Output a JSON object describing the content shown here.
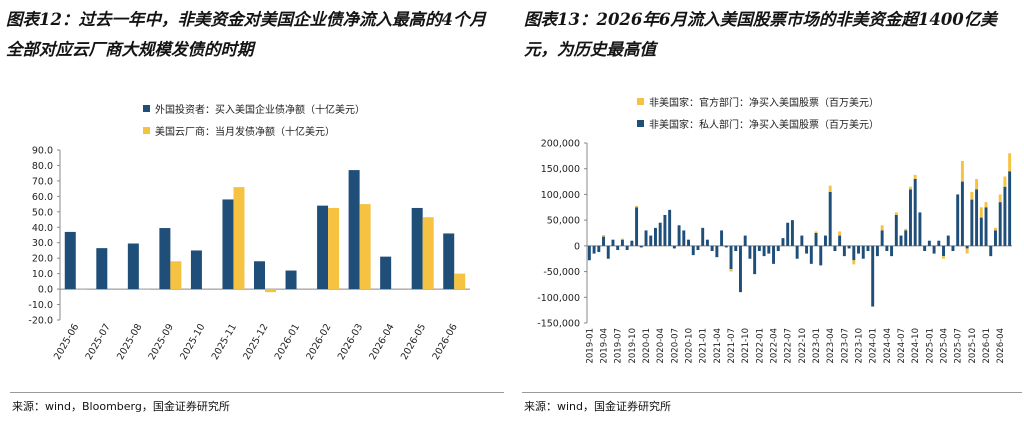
{
  "left": {
    "title": "图表12：过去一年中，非美资金对美国企业债净流入最高的4个月全部对应云厂商大规模发债的时期",
    "source": "来源：wind，Bloomberg，国金证券研究所",
    "colors": {
      "primary": "#1f4e79",
      "secondary": "#f5c242"
    },
    "chart_data": {
      "type": "bar",
      "categories": [
        "2025-06",
        "2025-07",
        "2025-08",
        "2025-09",
        "2025-10",
        "2025-11",
        "2025-12",
        "2026-01",
        "2026-02",
        "2026-03",
        "2026-04",
        "2026-05",
        "2026-06"
      ],
      "series": [
        {
          "name": "外国投资者：买入美国企业债净额（十亿美元）",
          "values": [
            37,
            26.5,
            29.5,
            39.5,
            25,
            58,
            18,
            12,
            54,
            77,
            21,
            52.5,
            36
          ]
        },
        {
          "name": "美国云厂商：当月发债净额（十亿美元）",
          "values": [
            -0.5,
            null,
            -0.5,
            18,
            null,
            66,
            -2,
            null,
            52.5,
            55,
            null,
            46.5,
            10
          ]
        }
      ],
      "ylim": [
        -20,
        90
      ],
      "yticks": [
        "90.0",
        "80.0",
        "70.0",
        "60.0",
        "50.0",
        "40.0",
        "30.0",
        "20.0",
        "10.0",
        "0.0",
        "-10.0",
        "-20.0"
      ],
      "grid": false,
      "legend": "top-left"
    }
  },
  "right": {
    "title": "图表13：2026年6月流入美国股票市场的非美资金超1400亿美元，为历史最高值",
    "source": "来源：wind，国金证券研究所",
    "colors": {
      "primary": "#1f4e79",
      "secondary": "#f5c242"
    },
    "chart_data": {
      "type": "bar",
      "stacked": true,
      "start": "2019-01",
      "months": 90,
      "xtick_labels": [
        "2019-01",
        "2019-04",
        "2019-07",
        "2019-10",
        "2020-01",
        "2020-04",
        "2020-07",
        "2020-10",
        "2021-01",
        "2021-04",
        "2021-07",
        "2021-10",
        "2022-01",
        "2022-04",
        "2022-07",
        "2022-10",
        "2023-01",
        "2023-04",
        "2023-07",
        "2023-10",
        "2024-01",
        "2024-04",
        "2024-07",
        "2024-10",
        "2025-01",
        "2025-04",
        "2025-07",
        "2025-10",
        "2026-01",
        "2026-04"
      ],
      "series": [
        {
          "name": "非美国家：私人部门：净买入美国股票（百万美元）",
          "values": [
            -28000,
            -15000,
            -12000,
            18000,
            -25000,
            12000,
            -8000,
            12000,
            -8000,
            10000,
            75000,
            -3000,
            30000,
            20000,
            35000,
            45000,
            60000,
            70000,
            -5000,
            40000,
            30000,
            12000,
            -18000,
            -8000,
            35000,
            12000,
            -10000,
            -22000,
            30000,
            -3000,
            -45000,
            -10000,
            -90000,
            20000,
            -25000,
            -55000,
            -10000,
            -20000,
            -15000,
            -35000,
            -10000,
            15000,
            45000,
            50000,
            -25000,
            20000,
            -15000,
            -35000,
            25000,
            -38000,
            20000,
            105000,
            -10000,
            20000,
            -20000,
            -5000,
            -28000,
            -15000,
            -25000,
            -10000,
            -118000,
            -20000,
            30000,
            -10000,
            -20000,
            60000,
            20000,
            30000,
            110000,
            130000,
            65000,
            -10000,
            10000,
            -15000,
            10000,
            -20000,
            20000,
            -10000,
            100000,
            125000,
            -5000,
            90000,
            110000,
            55000,
            75000,
            -20000,
            30000,
            85000,
            115000,
            145000
          ],
          "color": "#1f4e79"
        },
        {
          "name": "非美国家：官方部门：净买入美国股票（百万美元）",
          "values": [
            0,
            0,
            0,
            3000,
            0,
            0,
            0,
            2000,
            0,
            0,
            3000,
            0,
            0,
            0,
            0,
            0,
            0,
            0,
            0,
            0,
            0,
            0,
            0,
            0,
            0,
            0,
            0,
            0,
            0,
            0,
            -5000,
            0,
            0,
            0,
            0,
            0,
            0,
            0,
            0,
            0,
            0,
            0,
            0,
            0,
            0,
            0,
            0,
            0,
            3000,
            0,
            0,
            12000,
            0,
            8000,
            0,
            0,
            -8000,
            0,
            0,
            0,
            0,
            0,
            10000,
            0,
            0,
            5000,
            0,
            3000,
            5000,
            8000,
            0,
            0,
            0,
            0,
            0,
            -5000,
            0,
            0,
            0,
            40000,
            -10000,
            15000,
            20000,
            20000,
            10000,
            0,
            5000,
            15000,
            20000,
            35000
          ],
          "color": "#f5c242"
        }
      ],
      "ylim": [
        -150000,
        200000
      ],
      "yticks": [
        "200,000",
        "150,000",
        "100,000",
        "50,000",
        "0",
        "-50,000",
        "-100,000",
        "-150,000"
      ],
      "grid": false,
      "legend": "top-left"
    }
  }
}
